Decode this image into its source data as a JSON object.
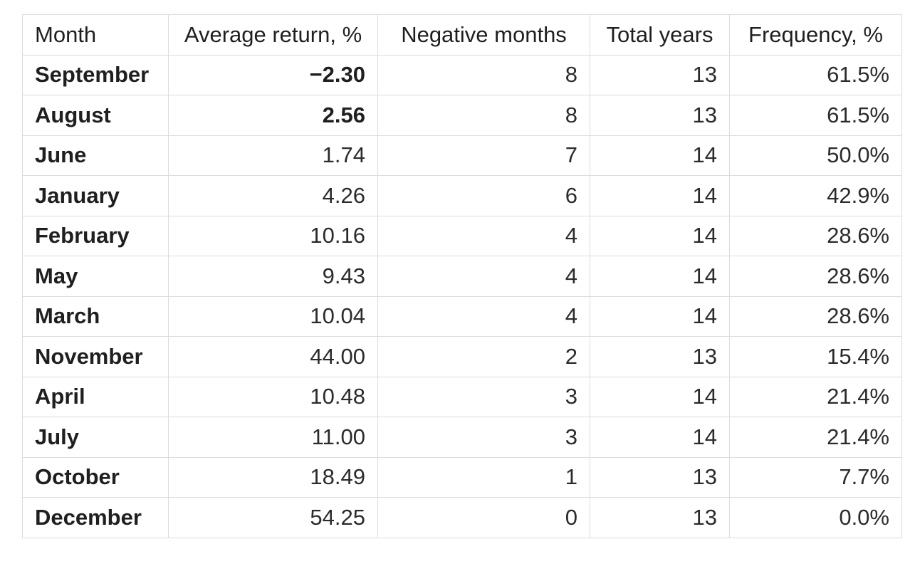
{
  "chart_data": {
    "type": "table",
    "columns": [
      "Month",
      "Average return, %",
      "Negative months",
      "Total years",
      "Frequency, %"
    ],
    "rows": [
      {
        "month": "September",
        "avg_return": "−2.30",
        "negative_months": "8",
        "total_years": "13",
        "frequency": "61.5%",
        "avg_bold": true
      },
      {
        "month": "August",
        "avg_return": "2.56",
        "negative_months": "8",
        "total_years": "13",
        "frequency": "61.5%",
        "avg_bold": true
      },
      {
        "month": "June",
        "avg_return": "1.74",
        "negative_months": "7",
        "total_years": "14",
        "frequency": "50.0%",
        "avg_bold": false
      },
      {
        "month": "January",
        "avg_return": "4.26",
        "negative_months": "6",
        "total_years": "14",
        "frequency": "42.9%",
        "avg_bold": false
      },
      {
        "month": "February",
        "avg_return": "10.16",
        "negative_months": "4",
        "total_years": "14",
        "frequency": "28.6%",
        "avg_bold": false
      },
      {
        "month": "May",
        "avg_return": "9.43",
        "negative_months": "4",
        "total_years": "14",
        "frequency": "28.6%",
        "avg_bold": false
      },
      {
        "month": "March",
        "avg_return": "10.04",
        "negative_months": "4",
        "total_years": "14",
        "frequency": "28.6%",
        "avg_bold": false
      },
      {
        "month": "November",
        "avg_return": "44.00",
        "negative_months": "2",
        "total_years": "13",
        "frequency": "15.4%",
        "avg_bold": false
      },
      {
        "month": "April",
        "avg_return": "10.48",
        "negative_months": "3",
        "total_years": "14",
        "frequency": "21.4%",
        "avg_bold": false
      },
      {
        "month": "July",
        "avg_return": "11.00",
        "negative_months": "3",
        "total_years": "14",
        "frequency": "21.4%",
        "avg_bold": false
      },
      {
        "month": "October",
        "avg_return": "18.49",
        "negative_months": "1",
        "total_years": "13",
        "frequency": "7.7%",
        "avg_bold": false
      },
      {
        "month": "December",
        "avg_return": "54.25",
        "negative_months": "0",
        "total_years": "13",
        "frequency": "0.0%",
        "avg_bold": false
      }
    ]
  },
  "colors": {
    "border": "#dcdcdc",
    "text": "#1f1f1f",
    "background": "#ffffff"
  }
}
